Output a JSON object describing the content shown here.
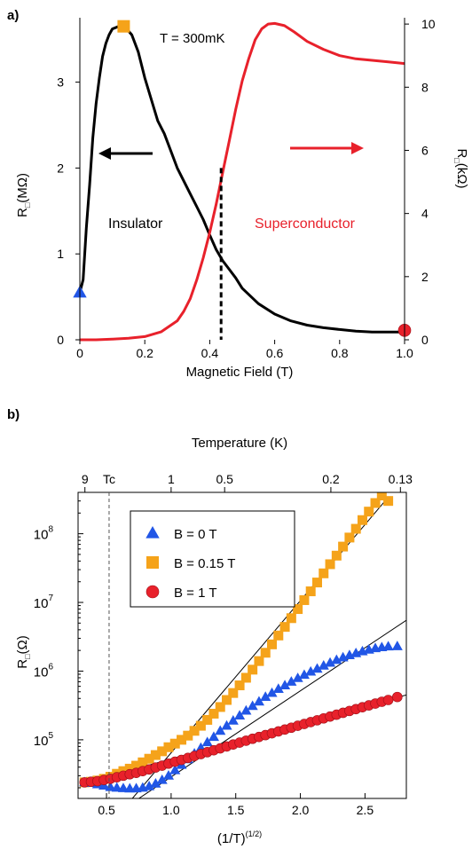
{
  "chart_data": [
    {
      "panel_label": "a)",
      "type": "line",
      "annotation": "T = 300mK",
      "xlabel": "Magnetic Field (T)",
      "ylabel_left": "R",
      "ylabel_left_sub": "□",
      "ylabel_left_unit": "(MΩ)",
      "ylabel_right": "R",
      "ylabel_right_sub": "□",
      "ylabel_right_unit": "(kΩ)",
      "xlim": [
        0,
        1.0
      ],
      "ylim_left": [
        0,
        3.75
      ],
      "ylim_right": [
        0,
        10.2
      ],
      "x_ticks": [
        "0",
        "0.2",
        "0.4",
        "0.6",
        "0.8",
        "1.0"
      ],
      "x_tick_values": [
        0,
        0.2,
        0.4,
        0.6,
        0.8,
        1.0
      ],
      "y_left_ticks": [
        "0",
        "1",
        "2",
        "3"
      ],
      "y_left_tick_values": [
        0,
        1,
        2,
        3
      ],
      "y_right_ticks": [
        "0",
        "2",
        "4",
        "6",
        "8",
        "10"
      ],
      "y_right_tick_values": [
        0,
        2,
        4,
        6,
        8,
        10
      ],
      "region_labels": [
        "Insulator",
        "Superconductor"
      ],
      "region_label_colors": [
        "#000000",
        "#e8212b"
      ],
      "dashed_line_x": 0.435,
      "series": [
        {
          "axis": "left",
          "color": "#000000",
          "x": [
            0,
            0.01,
            0.02,
            0.03,
            0.04,
            0.05,
            0.06,
            0.07,
            0.08,
            0.09,
            0.1,
            0.12,
            0.14,
            0.16,
            0.18,
            0.2,
            0.22,
            0.24,
            0.26,
            0.28,
            0.3,
            0.32,
            0.34,
            0.36,
            0.38,
            0.4,
            0.42,
            0.44,
            0.46,
            0.48,
            0.5,
            0.55,
            0.6,
            0.65,
            0.7,
            0.75,
            0.8,
            0.85,
            0.9,
            0.95,
            1.0
          ],
          "y": [
            0.55,
            0.7,
            1.3,
            1.8,
            2.35,
            2.75,
            3.05,
            3.3,
            3.45,
            3.55,
            3.62,
            3.65,
            3.64,
            3.55,
            3.35,
            3.05,
            2.8,
            2.55,
            2.4,
            2.2,
            2.0,
            1.85,
            1.7,
            1.55,
            1.4,
            1.22,
            1.05,
            0.92,
            0.82,
            0.72,
            0.6,
            0.42,
            0.3,
            0.22,
            0.17,
            0.14,
            0.12,
            0.1,
            0.09,
            0.09,
            0.09
          ]
        },
        {
          "axis": "right",
          "color": "#e8212b",
          "x": [
            0,
            0.05,
            0.1,
            0.15,
            0.2,
            0.25,
            0.3,
            0.32,
            0.34,
            0.36,
            0.38,
            0.4,
            0.42,
            0.44,
            0.46,
            0.48,
            0.5,
            0.52,
            0.54,
            0.56,
            0.58,
            0.6,
            0.63,
            0.66,
            0.7,
            0.75,
            0.8,
            0.85,
            0.9,
            0.95,
            1.0
          ],
          "y": [
            0,
            0,
            0.02,
            0.05,
            0.1,
            0.25,
            0.6,
            0.9,
            1.3,
            1.9,
            2.6,
            3.4,
            4.3,
            5.3,
            6.3,
            7.3,
            8.2,
            8.9,
            9.5,
            9.85,
            10.0,
            10.02,
            9.95,
            9.75,
            9.45,
            9.2,
            9.0,
            8.9,
            8.85,
            8.8,
            8.75
          ]
        }
      ],
      "markers": [
        {
          "shape": "triangle",
          "color": "#2156e6",
          "x": 0.0,
          "y": 0.55,
          "axis": "left"
        },
        {
          "shape": "square",
          "color": "#f5a31a",
          "x": 0.135,
          "y": 3.65,
          "axis": "left"
        },
        {
          "shape": "circle",
          "color": "#e8212b",
          "x": 1.0,
          "y": 0.3,
          "axis": "right"
        }
      ],
      "arrows": [
        {
          "direction": "left",
          "color": "#000000"
        },
        {
          "direction": "right",
          "color": "#e8212b"
        }
      ]
    },
    {
      "panel_label": "b)",
      "type": "scatter",
      "top_axis_label": "Temperature (K)",
      "xlabel": "(1/T)",
      "xlabel_sup": "(1/2)",
      "ylabel": "R",
      "ylabel_sub": "□",
      "ylabel_unit": "(Ω)",
      "y_scale": "log",
      "xlim": [
        0.28,
        2.82
      ],
      "ylim": [
        14000,
        400000000
      ],
      "x_ticks": [
        "0.5",
        "1.0",
        "1.5",
        "2.0",
        "2.5"
      ],
      "x_tick_values": [
        0.5,
        1.0,
        1.5,
        2.0,
        2.5
      ],
      "y_ticks": [
        {
          "base": "10",
          "exp": "5",
          "value": 100000
        },
        {
          "base": "10",
          "exp": "6",
          "value": 1000000
        },
        {
          "base": "10",
          "exp": "7",
          "value": 10000000
        },
        {
          "base": "10",
          "exp": "8",
          "value": 100000000
        }
      ],
      "top_ticks": [
        {
          "label": "9",
          "x": 0.333
        },
        {
          "label": "1",
          "x": 1.0
        },
        {
          "label": "0.5",
          "x": 1.414
        },
        {
          "label": "0.2",
          "x": 2.236
        },
        {
          "label": "0.13",
          "x": 2.774
        }
      ],
      "tc_label": "Tc",
      "tc_x": 0.52,
      "legend": {
        "placement": "top-left",
        "entries": [
          {
            "label": "B = 0 T",
            "shape": "triangle",
            "color": "#2156e6"
          },
          {
            "label": "B = 0.15 T",
            "shape": "square",
            "color": "#f5a31a"
          },
          {
            "label": "B = 1 T",
            "shape": "circle",
            "color": "#e8212b"
          }
        ]
      },
      "series": [
        {
          "shape": "square",
          "color": "#f5a31a",
          "x": [
            0.33,
            0.38,
            0.43,
            0.48,
            0.53,
            0.58,
            0.63,
            0.68,
            0.73,
            0.78,
            0.83,
            0.88,
            0.93,
            0.98,
            1.03,
            1.08,
            1.13,
            1.18,
            1.23,
            1.28,
            1.33,
            1.38,
            1.43,
            1.48,
            1.53,
            1.58,
            1.63,
            1.68,
            1.73,
            1.78,
            1.83,
            1.88,
            1.93,
            1.98,
            2.03,
            2.08,
            2.13,
            2.18,
            2.23,
            2.28,
            2.33,
            2.38,
            2.43,
            2.48,
            2.53,
            2.58,
            2.63,
            2.68
          ],
          "y": [
            24000,
            24500,
            25500,
            27000,
            29000,
            32000,
            35000,
            38000,
            42000,
            47000,
            53000,
            60000,
            68000,
            78000,
            88000,
            100000,
            115000,
            135000,
            160000,
            195000,
            240000,
            300000,
            380000,
            480000,
            620000,
            800000,
            1050000,
            1400000,
            1850000,
            2450000,
            3300000,
            4400000,
            5900000,
            8000000,
            10800000,
            14500000,
            19500000,
            26500000,
            36000000,
            48000000,
            65000000,
            88000000,
            118000000,
            158000000,
            210000000,
            280000000,
            360000000,
            300000000
          ]
        },
        {
          "shape": "triangle",
          "color": "#2156e6",
          "x": [
            0.33,
            0.38,
            0.43,
            0.48,
            0.53,
            0.58,
            0.63,
            0.68,
            0.73,
            0.78,
            0.83,
            0.88,
            0.93,
            0.98,
            1.03,
            1.08,
            1.13,
            1.18,
            1.23,
            1.28,
            1.33,
            1.38,
            1.43,
            1.48,
            1.53,
            1.58,
            1.63,
            1.68,
            1.73,
            1.78,
            1.83,
            1.88,
            1.93,
            1.98,
            2.03,
            2.08,
            2.13,
            2.18,
            2.23,
            2.28,
            2.33,
            2.38,
            2.43,
            2.48,
            2.53,
            2.58,
            2.63,
            2.68,
            2.75
          ],
          "y": [
            24000,
            23500,
            22500,
            21500,
            20500,
            20000,
            19700,
            19500,
            19600,
            20000,
            21000,
            23000,
            26000,
            30000,
            36000,
            43000,
            52000,
            63000,
            76000,
            92000,
            110000,
            135000,
            160000,
            190000,
            225000,
            265000,
            310000,
            360000,
            420000,
            480000,
            550000,
            620000,
            700000,
            790000,
            880000,
            980000,
            1080000,
            1200000,
            1320000,
            1450000,
            1580000,
            1700000,
            1820000,
            1940000,
            2050000,
            2150000,
            2220000,
            2280000,
            2300000
          ]
        },
        {
          "shape": "circle",
          "color": "#e8212b",
          "x": [
            0.33,
            0.38,
            0.43,
            0.48,
            0.53,
            0.58,
            0.63,
            0.68,
            0.73,
            0.78,
            0.83,
            0.88,
            0.93,
            0.98,
            1.03,
            1.08,
            1.13,
            1.18,
            1.23,
            1.28,
            1.33,
            1.38,
            1.43,
            1.48,
            1.53,
            1.58,
            1.63,
            1.68,
            1.73,
            1.78,
            1.83,
            1.88,
            1.93,
            1.98,
            2.03,
            2.08,
            2.13,
            2.18,
            2.23,
            2.28,
            2.33,
            2.38,
            2.43,
            2.48,
            2.53,
            2.58,
            2.63,
            2.68,
            2.75
          ],
          "y": [
            24000,
            24500,
            25000,
            26000,
            27000,
            28500,
            30000,
            31500,
            33000,
            35000,
            37000,
            39500,
            42000,
            45000,
            48000,
            51000,
            54500,
            58000,
            62000,
            66000,
            70500,
            75000,
            80000,
            85500,
            91000,
            97000,
            103500,
            110000,
            117000,
            124500,
            132500,
            141000,
            150000,
            160000,
            170000,
            181000,
            192500,
            205000,
            218000,
            232000,
            247000,
            263000,
            280000,
            298000,
            317000,
            337000,
            358000,
            380000,
            420000
          ]
        }
      ],
      "fit_lines": [
        {
          "x": [
            0.7,
            2.68
          ],
          "y": [
            14000,
            340000000
          ]
        },
        {
          "x": [
            0.75,
            2.82
          ],
          "y": [
            14000,
            5500000
          ]
        },
        {
          "x": [
            0.3,
            2.82
          ],
          "y": [
            23000,
            450000
          ]
        }
      ]
    }
  ]
}
